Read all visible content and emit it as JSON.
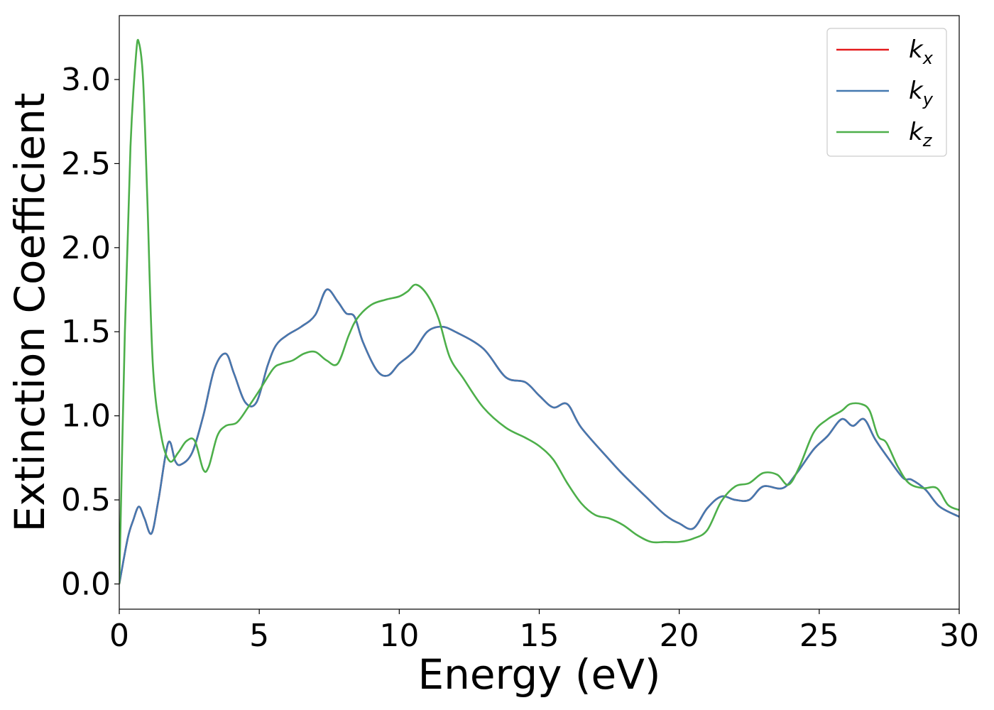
{
  "chart_data": {
    "type": "line",
    "xlabel": "Energy (eV)",
    "ylabel": "Extinction Coefficient",
    "xlim": [
      0,
      30
    ],
    "ylim": [
      -0.15,
      3.38
    ],
    "grid": false,
    "legend_position": "top-right",
    "xticks": [
      "0",
      "5",
      "10",
      "15",
      "20",
      "25",
      "30"
    ],
    "yticks": [
      "0.0",
      "0.5",
      "1.0",
      "1.5",
      "2.0",
      "2.5",
      "3.0"
    ],
    "series": [
      {
        "name": "k_x",
        "legend": {
          "base": "k",
          "sub": "x"
        },
        "color": "#e41a1c",
        "x": [
          0,
          0.3,
          0.5,
          0.7,
          0.9,
          1.15,
          1.4,
          1.75,
          2.0,
          2.2,
          2.6,
          3.0,
          3.4,
          3.8,
          4.1,
          4.5,
          4.9,
          5.3,
          5.6,
          6.0,
          6.5,
          7.0,
          7.4,
          7.8,
          8.1,
          8.4,
          8.7,
          9.2,
          9.6,
          10.0,
          10.5,
          11.0,
          11.5,
          12.0,
          13.0,
          13.8,
          14.5,
          15.0,
          15.5,
          16.0,
          16.5,
          17.5,
          18.0,
          18.8,
          19.5,
          20.0,
          20.5,
          21.0,
          21.5,
          22.0,
          22.5,
          23.0,
          23.7,
          24.2,
          24.8,
          25.3,
          25.8,
          26.2,
          26.6,
          27.0,
          27.5,
          28.0,
          28.3,
          28.8,
          29.3,
          30.0
        ],
        "y": [
          0.0,
          0.27,
          0.38,
          0.46,
          0.39,
          0.3,
          0.5,
          0.84,
          0.73,
          0.71,
          0.78,
          1.0,
          1.28,
          1.37,
          1.25,
          1.08,
          1.08,
          1.3,
          1.42,
          1.48,
          1.53,
          1.6,
          1.75,
          1.68,
          1.61,
          1.59,
          1.44,
          1.27,
          1.24,
          1.31,
          1.38,
          1.5,
          1.53,
          1.5,
          1.4,
          1.23,
          1.2,
          1.12,
          1.05,
          1.07,
          0.93,
          0.74,
          0.65,
          0.52,
          0.41,
          0.36,
          0.33,
          0.45,
          0.52,
          0.5,
          0.5,
          0.58,
          0.57,
          0.66,
          0.8,
          0.88,
          0.98,
          0.94,
          0.98,
          0.86,
          0.74,
          0.63,
          0.62,
          0.56,
          0.46,
          0.4
        ]
      },
      {
        "name": "k_y",
        "legend": {
          "base": "k",
          "sub": "y"
        },
        "color": "#4479b0",
        "x": [
          0,
          0.3,
          0.5,
          0.7,
          0.9,
          1.15,
          1.4,
          1.75,
          2.0,
          2.2,
          2.6,
          3.0,
          3.4,
          3.8,
          4.1,
          4.5,
          4.9,
          5.3,
          5.6,
          6.0,
          6.5,
          7.0,
          7.4,
          7.8,
          8.1,
          8.4,
          8.7,
          9.2,
          9.6,
          10.0,
          10.5,
          11.0,
          11.5,
          12.0,
          13.0,
          13.8,
          14.5,
          15.0,
          15.5,
          16.0,
          16.5,
          17.5,
          18.0,
          18.8,
          19.5,
          20.0,
          20.5,
          21.0,
          21.5,
          22.0,
          22.5,
          23.0,
          23.7,
          24.2,
          24.8,
          25.3,
          25.8,
          26.2,
          26.6,
          27.0,
          27.5,
          28.0,
          28.3,
          28.8,
          29.3,
          30.0
        ],
        "y": [
          0.0,
          0.27,
          0.38,
          0.46,
          0.39,
          0.3,
          0.5,
          0.84,
          0.73,
          0.71,
          0.78,
          1.0,
          1.28,
          1.37,
          1.25,
          1.08,
          1.08,
          1.3,
          1.42,
          1.48,
          1.53,
          1.6,
          1.75,
          1.68,
          1.61,
          1.59,
          1.44,
          1.27,
          1.24,
          1.31,
          1.38,
          1.5,
          1.53,
          1.5,
          1.4,
          1.23,
          1.2,
          1.12,
          1.05,
          1.07,
          0.93,
          0.74,
          0.65,
          0.52,
          0.41,
          0.36,
          0.33,
          0.45,
          0.52,
          0.5,
          0.5,
          0.58,
          0.57,
          0.66,
          0.8,
          0.88,
          0.98,
          0.94,
          0.98,
          0.86,
          0.74,
          0.63,
          0.62,
          0.56,
          0.46,
          0.4
        ]
      },
      {
        "name": "k_z",
        "legend": {
          "base": "k",
          "sub": "z"
        },
        "color": "#4daf4a",
        "x": [
          0,
          0.2,
          0.4,
          0.6,
          0.7,
          0.85,
          1.0,
          1.2,
          1.5,
          1.8,
          2.1,
          2.4,
          2.7,
          3.0,
          3.2,
          3.5,
          3.8,
          4.2,
          4.6,
          5.0,
          5.5,
          5.8,
          6.2,
          6.6,
          7.0,
          7.4,
          7.8,
          8.2,
          8.5,
          9.0,
          9.5,
          10.0,
          10.3,
          10.6,
          11.0,
          11.4,
          11.8,
          12.3,
          13.0,
          13.8,
          14.5,
          15.0,
          15.5,
          16.0,
          16.5,
          17.0,
          17.5,
          18.0,
          18.5,
          19.0,
          19.5,
          20.0,
          20.5,
          21.0,
          21.5,
          22.0,
          22.5,
          23.0,
          23.5,
          23.9,
          24.3,
          24.8,
          25.3,
          25.8,
          26.1,
          26.5,
          26.8,
          27.1,
          27.4,
          27.8,
          28.2,
          28.7,
          29.2,
          29.6,
          30.0
        ],
        "y": [
          0.0,
          1.5,
          2.6,
          3.15,
          3.22,
          3.0,
          2.3,
          1.3,
          0.88,
          0.73,
          0.78,
          0.85,
          0.85,
          0.68,
          0.7,
          0.88,
          0.94,
          0.96,
          1.05,
          1.15,
          1.28,
          1.31,
          1.33,
          1.37,
          1.38,
          1.33,
          1.31,
          1.48,
          1.58,
          1.66,
          1.69,
          1.71,
          1.74,
          1.78,
          1.72,
          1.58,
          1.35,
          1.22,
          1.05,
          0.93,
          0.87,
          0.82,
          0.74,
          0.6,
          0.48,
          0.41,
          0.39,
          0.35,
          0.29,
          0.25,
          0.25,
          0.25,
          0.27,
          0.32,
          0.49,
          0.58,
          0.6,
          0.66,
          0.65,
          0.59,
          0.7,
          0.9,
          0.98,
          1.03,
          1.07,
          1.07,
          1.03,
          0.88,
          0.84,
          0.7,
          0.6,
          0.57,
          0.57,
          0.47,
          0.44
        ]
      }
    ]
  }
}
